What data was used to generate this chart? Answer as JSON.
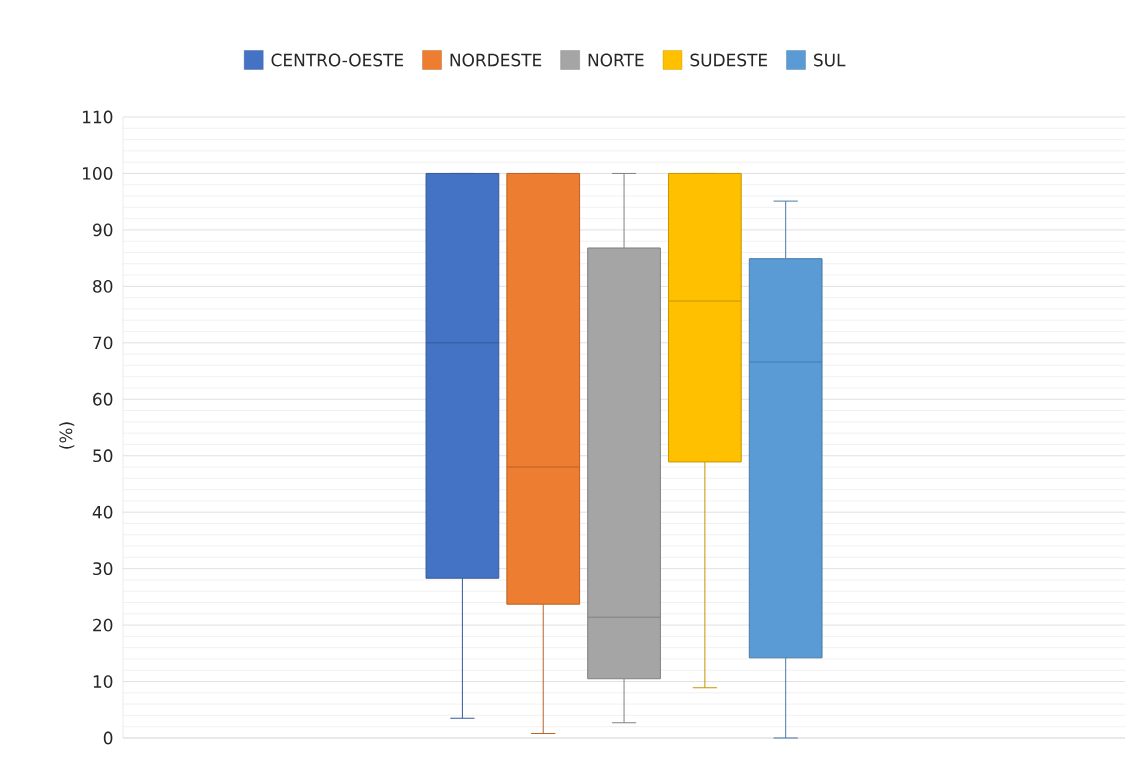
{
  "chart_data": {
    "type": "box",
    "ylabel": "(%)",
    "categories": [
      null
    ],
    "ylim": [
      0,
      110
    ],
    "yticks": [
      0,
      10,
      20,
      30,
      40,
      50,
      60,
      70,
      80,
      90,
      100,
      110
    ],
    "grid": "y",
    "legend": "top",
    "series": [
      {
        "name": "CENTRO-OESTE",
        "color": "#4472c4",
        "boxes": [
          {
            "low": 3.5,
            "q1": 28.3,
            "median": 70,
            "q3": 100,
            "high": 100
          }
        ]
      },
      {
        "name": "NORDESTE",
        "color": "#ed7d31",
        "boxes": [
          {
            "low": 0.8,
            "q1": 23.7,
            "median": 48,
            "q3": 100,
            "high": 100
          }
        ]
      },
      {
        "name": "NORTE",
        "color": "#a5a5a5",
        "boxes": [
          {
            "low": 2.7,
            "q1": 10.5,
            "median": 21.4,
            "q3": 86.8,
            "high": 100
          }
        ]
      },
      {
        "name": "SUDESTE",
        "color": "#ffc000",
        "boxes": [
          {
            "low": 8.9,
            "q1": 48.9,
            "median": 77.4,
            "q3": 100,
            "high": 100
          }
        ]
      },
      {
        "name": "SUL",
        "color": "#5b9bd5",
        "boxes": [
          {
            "low": 0,
            "q1": 14.2,
            "median": 66.6,
            "q3": 84.9,
            "high": 95.1
          }
        ]
      }
    ]
  }
}
